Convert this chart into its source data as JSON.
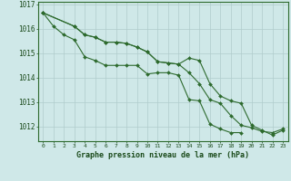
{
  "title": "Graphe pression niveau de la mer (hPa)",
  "background_color": "#cfe8e8",
  "grid_color": "#b0cccc",
  "line_color": "#2d6a2d",
  "x_labels": [
    "0",
    "1",
    "2",
    "3",
    "4",
    "5",
    "6",
    "7",
    "8",
    "9",
    "10",
    "11",
    "12",
    "13",
    "14",
    "15",
    "16",
    "17",
    "18",
    "19",
    "20",
    "21",
    "22",
    "23"
  ],
  "ylim": [
    1011.4,
    1017.1
  ],
  "yticks": [
    1012,
    1013,
    1014,
    1015,
    1016,
    1017
  ],
  "series": {
    "line1": [
      1016.65,
      1016.1,
      1015.75,
      1015.55,
      1014.85,
      1014.7,
      1014.5,
      1014.5,
      1014.5,
      1014.5,
      1014.15,
      1014.2,
      1014.2,
      1014.1,
      1013.1,
      1013.05,
      1012.1,
      1011.9,
      1011.75,
      1011.75,
      null,
      null,
      null,
      null
    ],
    "line2": [
      1016.65,
      null,
      null,
      1016.1,
      1015.75,
      1015.65,
      1015.45,
      1015.45,
      1015.4,
      1015.25,
      1015.05,
      1014.65,
      1014.6,
      1014.55,
      1014.2,
      1013.75,
      1013.1,
      1012.95,
      1012.45,
      1012.05,
      1011.95,
      1011.8,
      1011.75,
      1011.9
    ],
    "line3": [
      1016.65,
      null,
      null,
      1016.1,
      1015.75,
      1015.65,
      1015.45,
      1015.45,
      1015.4,
      1015.25,
      1015.05,
      1014.65,
      1014.6,
      1014.55,
      1014.8,
      1014.7,
      1013.75,
      1013.25,
      1013.05,
      1012.95,
      1012.05,
      1011.85,
      1011.65,
      1011.85
    ]
  }
}
